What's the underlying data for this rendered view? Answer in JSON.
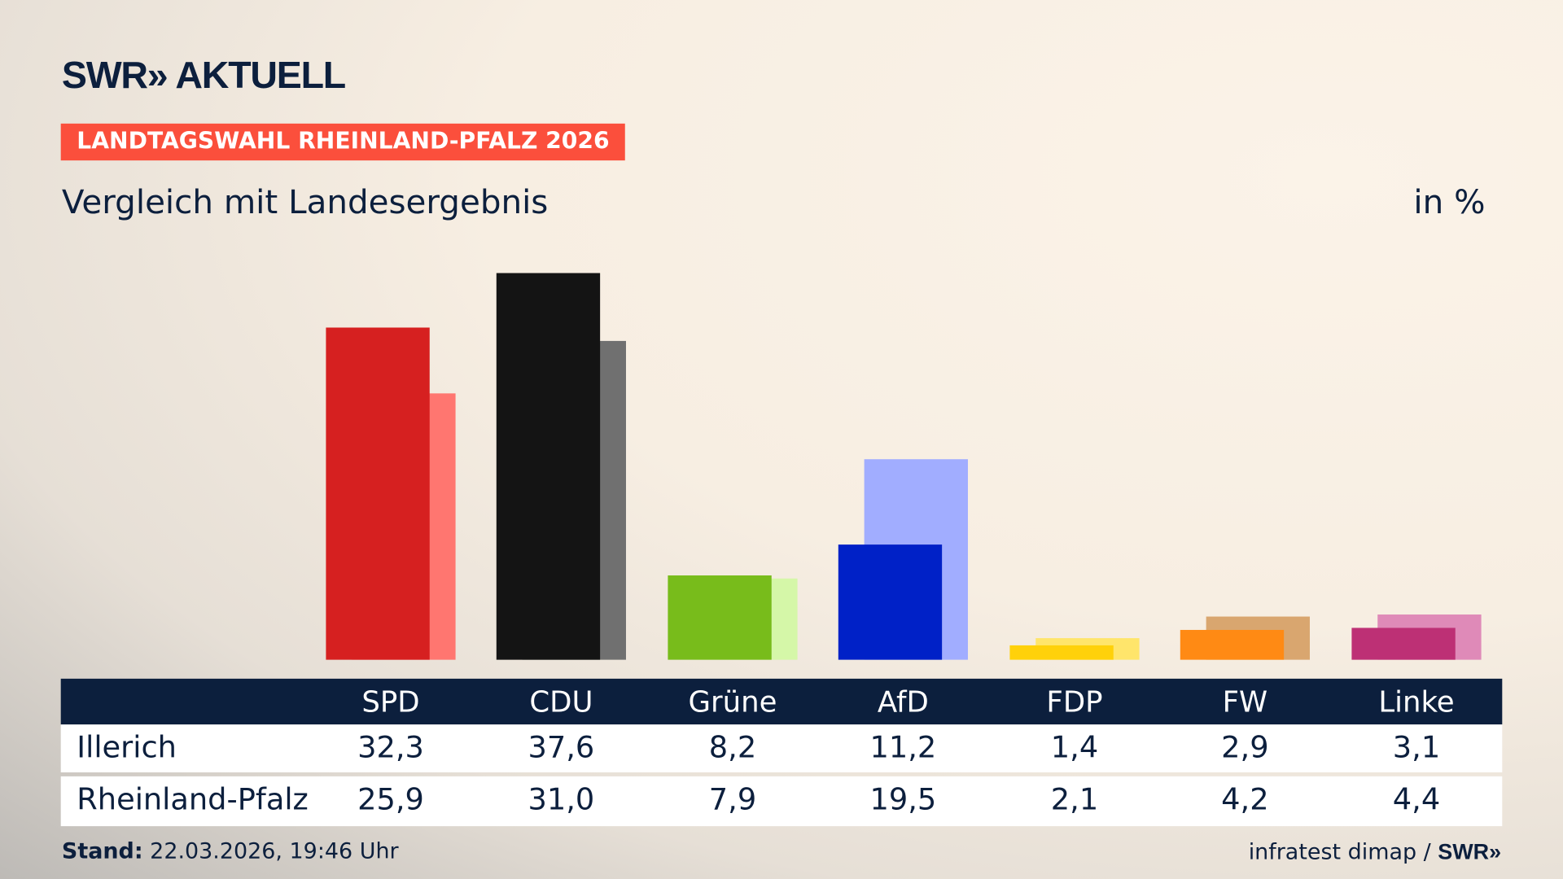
{
  "header": {
    "logo": "SWR» AKTUELL",
    "badge": "LANDTAGSWAHL RHEINLAND-PFALZ 2026",
    "subtitle": "Vergleich mit Landesergebnis",
    "unit": "in %"
  },
  "chart_data": {
    "type": "bar",
    "categories": [
      "SPD",
      "CDU",
      "Grüne",
      "AfD",
      "FDP",
      "FW",
      "Linke"
    ],
    "series": [
      {
        "name": "Illerich",
        "values": [
          32.3,
          37.6,
          8.2,
          11.2,
          1.4,
          2.9,
          3.1
        ],
        "colors": [
          "#d62020",
          "#141414",
          "#78bc1b",
          "#0021c7",
          "#ffd10a",
          "#ff8a14",
          "#bd3075"
        ]
      },
      {
        "name": "Rheinland-Pfalz",
        "values": [
          25.9,
          31.0,
          7.9,
          19.5,
          2.1,
          4.2,
          4.4
        ],
        "colors": [
          "#ff7670",
          "#707070",
          "#d5f7a8",
          "#a1adff",
          "#ffe56b",
          "#d9a66f",
          "#df8ab8"
        ]
      }
    ],
    "ylim": [
      0,
      37.6
    ]
  },
  "table": {
    "headers": [
      "SPD",
      "CDU",
      "Grüne",
      "AfD",
      "FDP",
      "FW",
      "Linke"
    ],
    "rows": [
      {
        "label": "Illerich",
        "values": [
          "32,3",
          "37,6",
          "8,2",
          "11,2",
          "1,4",
          "2,9",
          "3,1"
        ]
      },
      {
        "label": "Rheinland-Pfalz",
        "values": [
          "25,9",
          "31,0",
          "7,9",
          "19,5",
          "2,1",
          "4,2",
          "4,4"
        ]
      }
    ]
  },
  "footer": {
    "stand_label": "Stand:",
    "stand_value": " 22.03.2026, 19:46 Uhr",
    "source": "infratest dimap / ",
    "source_logo": "SWR»"
  }
}
